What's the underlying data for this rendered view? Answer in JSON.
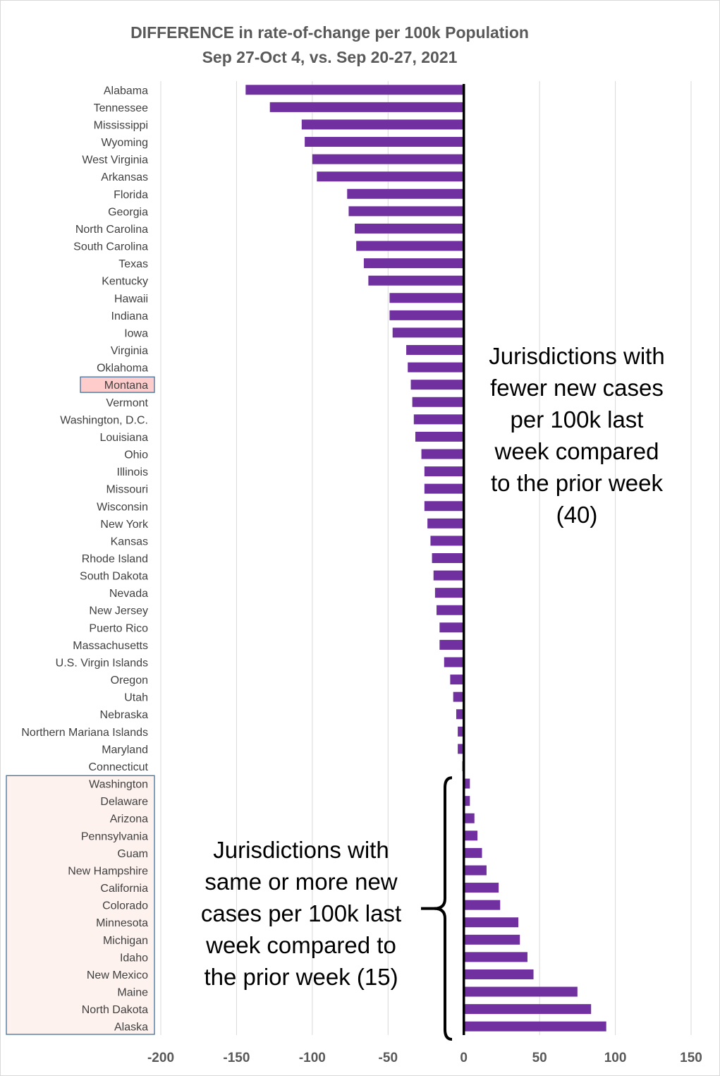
{
  "chart_data": {
    "type": "bar",
    "orientation": "horizontal",
    "title": "DIFFERENCE in rate-of-change per 100k Population",
    "subtitle": "Sep 27-Oct 4, vs. Sep 20-27, 2021",
    "xlabel": "",
    "ylabel": "",
    "xlim": [
      -200,
      150
    ],
    "xticks": [
      -200,
      -150,
      -100,
      -50,
      0,
      50,
      100,
      150
    ],
    "grid": "vertical",
    "bar_color": "#7030a0",
    "categories": [
      "Alabama",
      "Tennessee",
      "Mississippi",
      "Wyoming",
      "West Virginia",
      "Arkansas",
      "Florida",
      "Georgia",
      "North Carolina",
      "South Carolina",
      "Texas",
      "Kentucky",
      "Hawaii",
      "Indiana",
      "Iowa",
      "Virginia",
      "Oklahoma",
      "Montana",
      "Vermont",
      "Washington, D.C.",
      "Louisiana",
      "Ohio",
      "Illinois",
      "Missouri",
      "Wisconsin",
      "New York",
      "Kansas",
      "Rhode Island",
      "South Dakota",
      "Nevada",
      "New Jersey",
      "Puerto Rico",
      "Massachusetts",
      "U.S. Virgin Islands",
      "Oregon",
      "Utah",
      "Nebraska",
      "Northern Mariana Islands",
      "Maryland",
      "Connecticut",
      "Washington",
      "Delaware",
      "Arizona",
      "Pennsylvania",
      "Guam",
      "New Hampshire",
      "California",
      "Colorado",
      "Minnesota",
      "Michigan",
      "Idaho",
      "New Mexico",
      "Maine",
      "North Dakota",
      "Alaska"
    ],
    "values": [
      -144,
      -128,
      -107,
      -105,
      -100,
      -97,
      -77,
      -76,
      -72,
      -71,
      -66,
      -63,
      -49,
      -49,
      -47,
      -38,
      -37,
      -35,
      -34,
      -33,
      -32,
      -28,
      -26,
      -26,
      -26,
      -24,
      -22,
      -21,
      -20,
      -19,
      -18,
      -16,
      -16,
      -13,
      -9,
      -7,
      -5,
      -4,
      -4,
      -1,
      4,
      4,
      7,
      9,
      12,
      15,
      23,
      24,
      36,
      37,
      42,
      46,
      75,
      84,
      94
    ],
    "highlight_states": [
      "Montana"
    ],
    "highlight_color": "#ffcccc",
    "increase_group_label_fill": "#fdf2ee",
    "box_border_color": "#41719c",
    "annotations": [
      "Jurisdictions with fewer new cases per 100k last week compared to the prior week (40)",
      "Jurisdictions with same or more new cases per 100k last week compared to the prior week (15)"
    ]
  },
  "annotations_display": {
    "fewer": "Jurisdictions with\nfewer new cases\nper 100k last\nweek compared\nto the prior week\n(40)",
    "more": "Jurisdictions with\nsame or more new\ncases per 100k last\nweek compared to\nthe prior week (15)"
  }
}
